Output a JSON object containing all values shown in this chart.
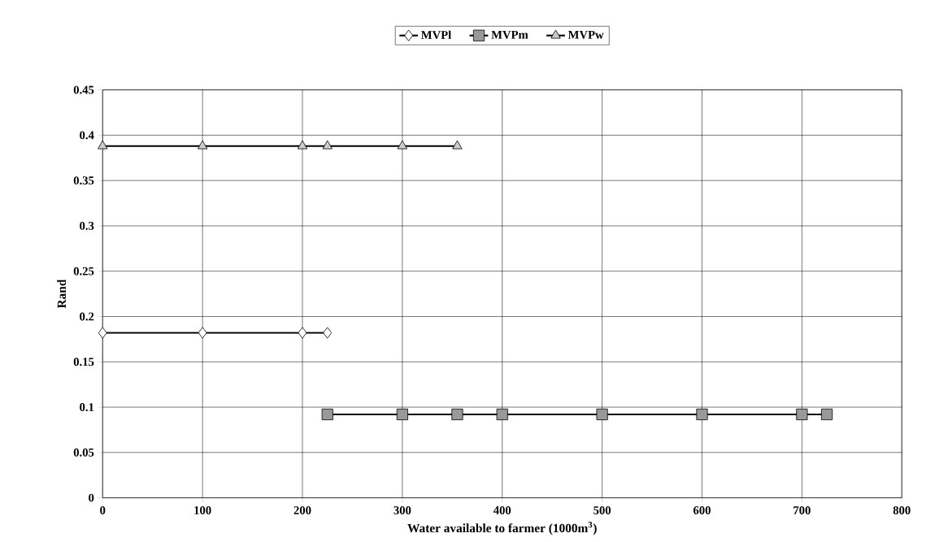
{
  "chart_data": {
    "type": "line",
    "xlabel": "Water available to farmer (1000m$^{3}$)",
    "ylabel": "Rand",
    "xlim": [
      0,
      800
    ],
    "xticks": [
      0,
      100,
      200,
      300,
      400,
      500,
      600,
      700,
      800
    ],
    "ylim": [
      0,
      0.45
    ],
    "yticks": [
      0,
      0.05,
      0.1,
      0.15,
      0.2,
      0.25,
      0.3,
      0.35,
      0.4,
      0.45
    ],
    "grid": true,
    "legend": "top",
    "line_style": "solid",
    "series": [
      {
        "name": "MVPl",
        "color": "#ffffff",
        "marker": "diamond",
        "x": [
          0,
          100,
          200,
          225
        ],
        "values": [
          0.182,
          0.182,
          0.182,
          0.182
        ]
      },
      {
        "name": "MVPm",
        "color": "#999999",
        "marker": "square",
        "x": [
          225,
          300,
          355,
          400,
          500,
          600,
          700,
          725
        ],
        "values": [
          0.092,
          0.092,
          0.092,
          0.092,
          0.092,
          0.092,
          0.092,
          0.092
        ]
      },
      {
        "name": "MVPw",
        "color": "#cccccc",
        "marker": "triangle",
        "x": [
          0,
          100,
          200,
          225,
          300,
          355
        ],
        "values": [
          0.388,
          0.388,
          0.388,
          0.388,
          0.388,
          0.388
        ]
      }
    ]
  }
}
